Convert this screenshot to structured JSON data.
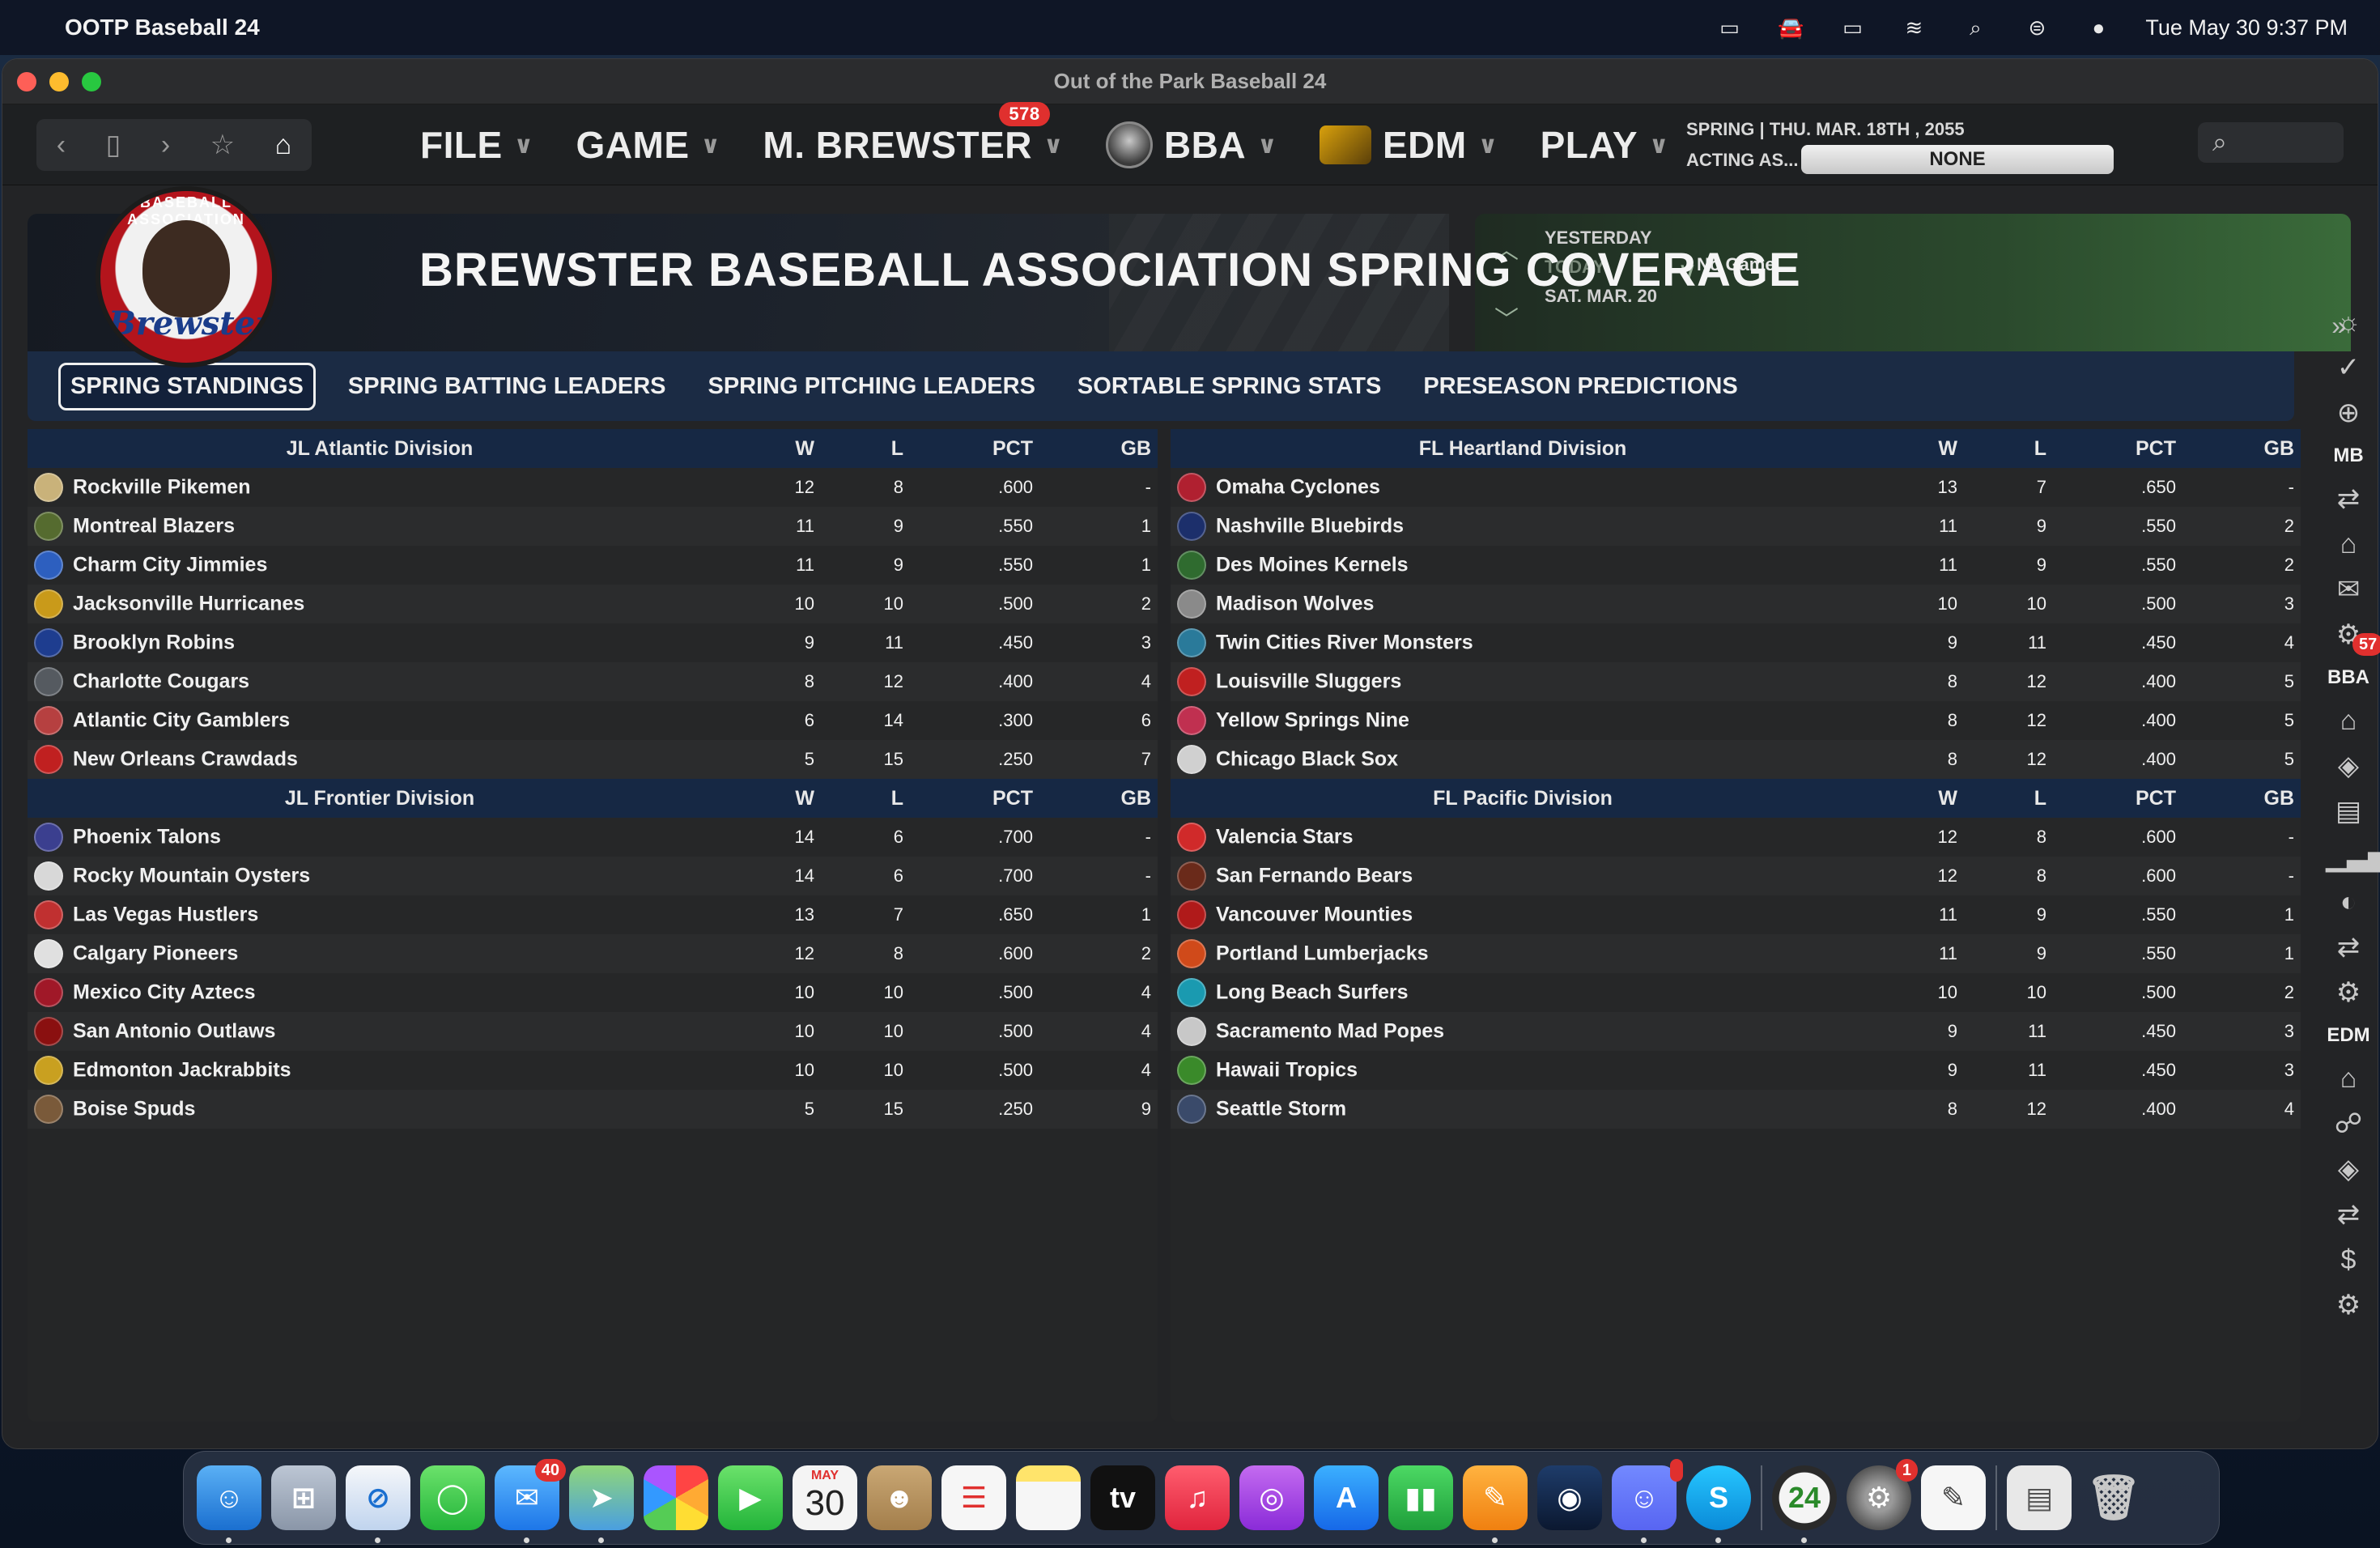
{
  "menubar": {
    "app_name": "OOTP Baseball 24",
    "datetime": "Tue May 30  9:37 PM"
  },
  "window": {
    "title": "Out of the Park Baseball 24"
  },
  "topnav": {
    "menus": [
      {
        "label": "FILE"
      },
      {
        "label": "GAME"
      },
      {
        "label": "M. BREWSTER",
        "badge": "578"
      },
      {
        "label": "BBA"
      },
      {
        "label": "EDM"
      },
      {
        "label": "PLAY"
      }
    ],
    "date_line": "SPRING  |  THU. MAR. 18TH , 2055",
    "acting_as_label": "ACTING AS...",
    "acting_as_value": "NONE"
  },
  "banner": {
    "title": "BREWSTER BASEBALL ASSOCIATION SPRING COVERAGE",
    "logo_ring": "BASEBALL ASSOCIATION",
    "logo_script": "Brewster"
  },
  "schedule": {
    "yesterday": "YESTERDAY",
    "today": "TODAY",
    "tomorrow": "TOMORROW",
    "date": "SAT. MAR. 20",
    "status": "No Game."
  },
  "tabs": [
    {
      "label": "SPRING STANDINGS",
      "active": true
    },
    {
      "label": "SPRING BATTING LEADERS"
    },
    {
      "label": "SPRING PITCHING LEADERS"
    },
    {
      "label": "SORTABLE SPRING STATS"
    },
    {
      "label": "PRESEASON PREDICTIONS"
    }
  ],
  "columns": {
    "w": "W",
    "l": "L",
    "pct": "PCT",
    "gb": "GB"
  },
  "divisions": {
    "jl_atlantic": {
      "name": "JL Atlantic Division",
      "teams": [
        {
          "name": "Rockville Pikemen",
          "w": "12",
          "l": "8",
          "pct": ".600",
          "gb": "-",
          "color": "#c9b27a"
        },
        {
          "name": "Montreal Blazers",
          "w": "11",
          "l": "9",
          "pct": ".550",
          "gb": "1",
          "color": "#556b2f"
        },
        {
          "name": "Charm City Jimmies",
          "w": "11",
          "l": "9",
          "pct": ".550",
          "gb": "1",
          "color": "#2d5fbf"
        },
        {
          "name": "Jacksonville Hurricanes",
          "w": "10",
          "l": "10",
          "pct": ".500",
          "gb": "2",
          "color": "#c99a1a"
        },
        {
          "name": "Brooklyn Robins",
          "w": "9",
          "l": "11",
          "pct": ".450",
          "gb": "3",
          "color": "#1e3d8f"
        },
        {
          "name": "Charlotte Cougars",
          "w": "8",
          "l": "12",
          "pct": ".400",
          "gb": "4",
          "color": "#555a60"
        },
        {
          "name": "Atlantic City Gamblers",
          "w": "6",
          "l": "14",
          "pct": ".300",
          "gb": "6",
          "color": "#b64040"
        },
        {
          "name": "New Orleans Crawdads",
          "w": "5",
          "l": "15",
          "pct": ".250",
          "gb": "7",
          "color": "#c02020"
        }
      ]
    },
    "jl_frontier": {
      "name": "JL Frontier Division",
      "teams": [
        {
          "name": "Phoenix Talons",
          "w": "14",
          "l": "6",
          "pct": ".700",
          "gb": "-",
          "color": "#3b3f8f"
        },
        {
          "name": "Rocky Mountain Oysters",
          "w": "14",
          "l": "6",
          "pct": ".700",
          "gb": "-",
          "color": "#d8d8d8"
        },
        {
          "name": "Las Vegas Hustlers",
          "w": "13",
          "l": "7",
          "pct": ".650",
          "gb": "1",
          "color": "#c03030"
        },
        {
          "name": "Calgary Pioneers",
          "w": "12",
          "l": "8",
          "pct": ".600",
          "gb": "2",
          "color": "#e0e0e0"
        },
        {
          "name": "Mexico City Aztecs",
          "w": "10",
          "l": "10",
          "pct": ".500",
          "gb": "4",
          "color": "#a01828"
        },
        {
          "name": "San Antonio Outlaws",
          "w": "10",
          "l": "10",
          "pct": ".500",
          "gb": "4",
          "color": "#8a1010"
        },
        {
          "name": "Edmonton Jackrabbits",
          "w": "10",
          "l": "10",
          "pct": ".500",
          "gb": "4",
          "color": "#c9a020"
        },
        {
          "name": "Boise Spuds",
          "w": "5",
          "l": "15",
          "pct": ".250",
          "gb": "9",
          "color": "#7a5a3a"
        }
      ]
    },
    "fl_heartland": {
      "name": "FL Heartland Division",
      "teams": [
        {
          "name": "Omaha Cyclones",
          "w": "13",
          "l": "7",
          "pct": ".650",
          "gb": "-",
          "color": "#b02030"
        },
        {
          "name": "Nashville Bluebirds",
          "w": "11",
          "l": "9",
          "pct": ".550",
          "gb": "2",
          "color": "#1c2f6b"
        },
        {
          "name": "Des Moines Kernels",
          "w": "11",
          "l": "9",
          "pct": ".550",
          "gb": "2",
          "color": "#2f6b2f"
        },
        {
          "name": "Madison Wolves",
          "w": "10",
          "l": "10",
          "pct": ".500",
          "gb": "3",
          "color": "#8a8a8a"
        },
        {
          "name": "Twin Cities River Monsters",
          "w": "9",
          "l": "11",
          "pct": ".450",
          "gb": "4",
          "color": "#2a7a9a"
        },
        {
          "name": "Louisville Sluggers",
          "w": "8",
          "l": "12",
          "pct": ".400",
          "gb": "5",
          "color": "#c02020"
        },
        {
          "name": "Yellow Springs Nine",
          "w": "8",
          "l": "12",
          "pct": ".400",
          "gb": "5",
          "color": "#c03050"
        },
        {
          "name": "Chicago Black Sox",
          "w": "8",
          "l": "12",
          "pct": ".400",
          "gb": "5",
          "color": "#d0d0d0"
        }
      ]
    },
    "fl_pacific": {
      "name": "FL Pacific Division",
      "teams": [
        {
          "name": "Valencia Stars",
          "w": "12",
          "l": "8",
          "pct": ".600",
          "gb": "-",
          "color": "#d02a2a"
        },
        {
          "name": "San Fernando Bears",
          "w": "12",
          "l": "8",
          "pct": ".600",
          "gb": "-",
          "color": "#6a2a1a"
        },
        {
          "name": "Vancouver Mounties",
          "w": "11",
          "l": "9",
          "pct": ".550",
          "gb": "1",
          "color": "#b01a1a"
        },
        {
          "name": "Portland Lumberjacks",
          "w": "11",
          "l": "9",
          "pct": ".550",
          "gb": "1",
          "color": "#d04a1a"
        },
        {
          "name": "Long Beach Surfers",
          "w": "10",
          "l": "10",
          "pct": ".500",
          "gb": "2",
          "color": "#1a9ab0"
        },
        {
          "name": "Sacramento Mad Popes",
          "w": "9",
          "l": "11",
          "pct": ".450",
          "gb": "3",
          "color": "#c8c8c8"
        },
        {
          "name": "Hawaii Tropics",
          "w": "9",
          "l": "11",
          "pct": ".450",
          "gb": "3",
          "color": "#3a8a2a"
        },
        {
          "name": "Seattle Storm",
          "w": "8",
          "l": "12",
          "pct": ".400",
          "gb": "4",
          "color": "#3a4a6a"
        }
      ]
    }
  },
  "sidebar": {
    "labels": {
      "mb": "MB",
      "bba": "BBA",
      "edm": "EDM"
    },
    "mail_badge": "57"
  },
  "dock": {
    "mail_badge": "40",
    "calendar_month": "MAY",
    "calendar_day": "30",
    "settings_badge": "1",
    "ootp_label": "24"
  }
}
